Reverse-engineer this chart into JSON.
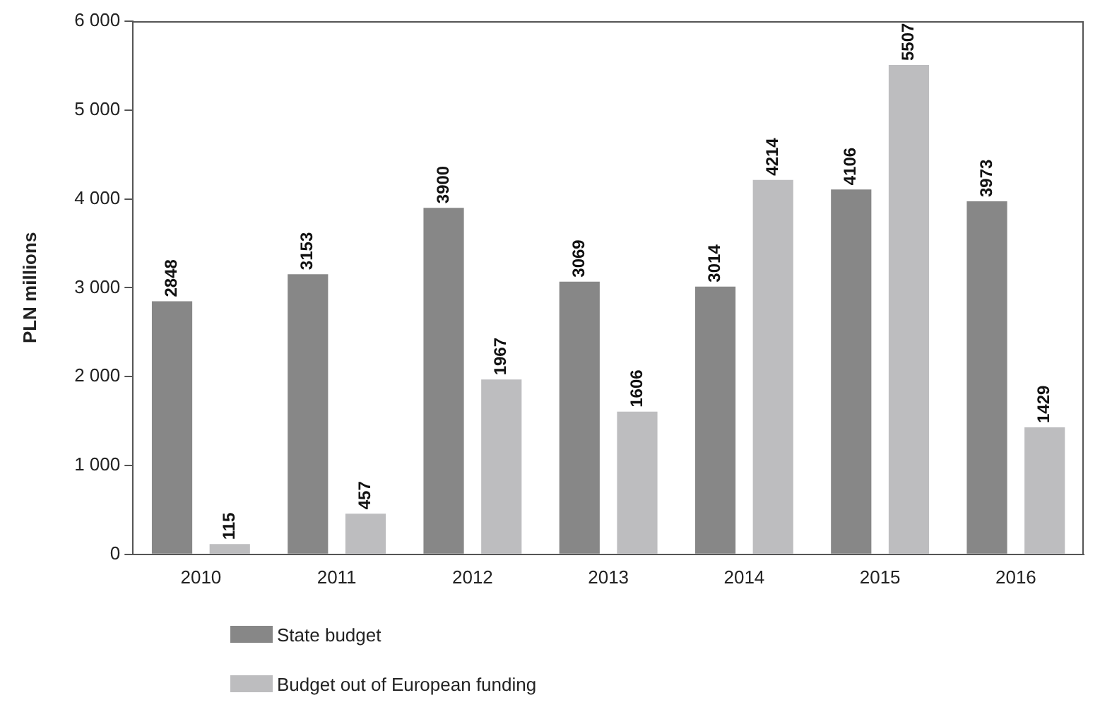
{
  "chart_data": {
    "type": "bar",
    "ylabel": "PLN millions",
    "categories": [
      "2010",
      "2011",
      "2012",
      "2013",
      "2014",
      "2015",
      "2016"
    ],
    "series": [
      {
        "name": "State budget",
        "color": "#878787",
        "values": [
          2848,
          3153,
          3900,
          3069,
          3014,
          4106,
          3973
        ]
      },
      {
        "name": "Budget out of European funding",
        "color": "#bdbdbf",
        "values": [
          115,
          457,
          1967,
          1606,
          4214,
          5507,
          1429
        ]
      }
    ],
    "ylim": [
      0,
      6000
    ],
    "yticks": [
      {
        "value": 0,
        "label": "0"
      },
      {
        "value": 1000,
        "label": "1 000"
      },
      {
        "value": 2000,
        "label": "2 000"
      },
      {
        "value": 3000,
        "label": "3 000"
      },
      {
        "value": 4000,
        "label": "4 000"
      },
      {
        "value": 5000,
        "label": "5 000"
      },
      {
        "value": 6000,
        "label": "6 000"
      }
    ],
    "grid": false,
    "legend": "bottom left",
    "data_labels": true
  }
}
